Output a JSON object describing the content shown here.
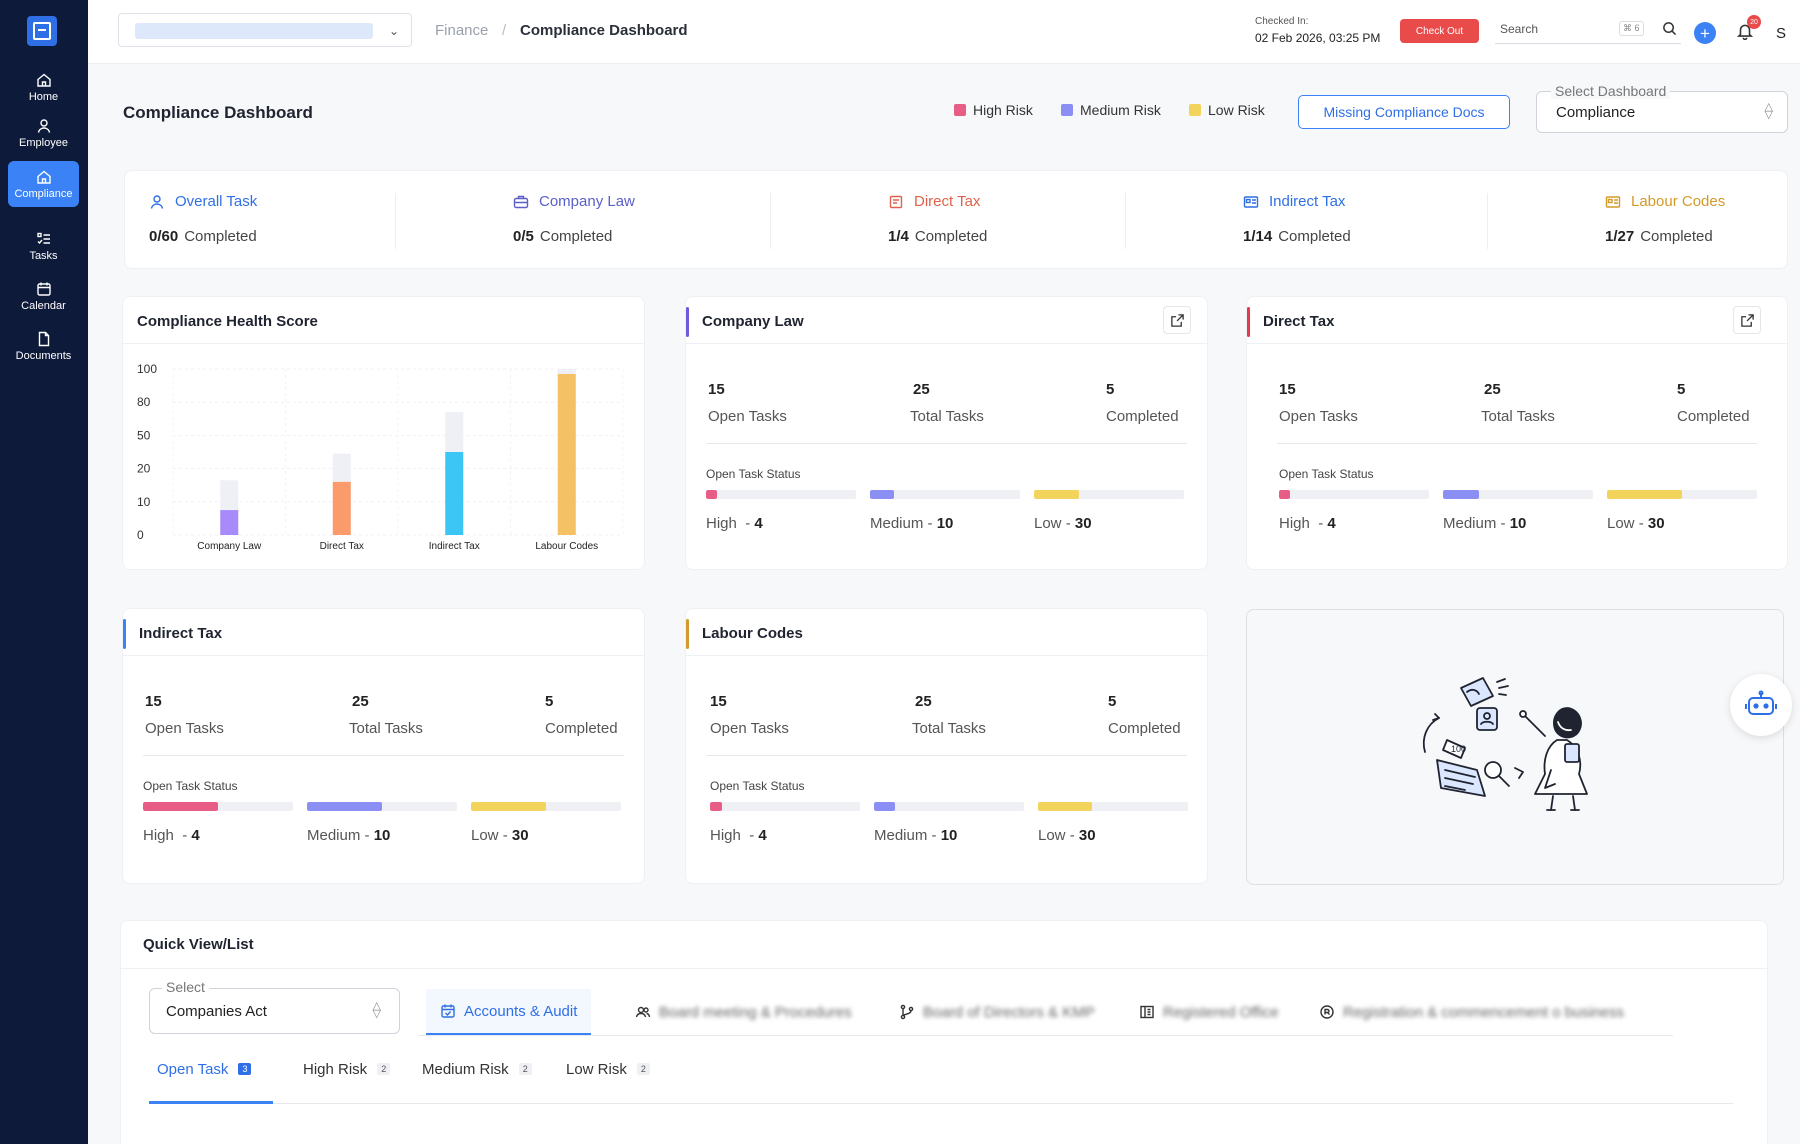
{
  "sidebar": {
    "items": [
      {
        "label": "Home",
        "icon": "home-icon"
      },
      {
        "label": "Employee",
        "icon": "user-icon"
      },
      {
        "label": "Compliance",
        "icon": "home-icon",
        "active": true
      },
      {
        "label": "Tasks",
        "icon": "tasks-icon"
      },
      {
        "label": "Calendar",
        "icon": "calendar-icon"
      },
      {
        "label": "Documents",
        "icon": "document-icon"
      }
    ]
  },
  "header": {
    "breadcrumb": [
      "Finance",
      "Compliance Dashboard"
    ],
    "checked_in_label": "Checked In:",
    "checked_in_time": "02 Feb 2026, 03:25 PM",
    "checkout_label": "Check Out",
    "search_placeholder": "Search",
    "search_shortcut": "⌘ 6",
    "notification_count": "20",
    "avatar_initial": "S"
  },
  "page": {
    "title": "Compliance Dashboard",
    "legend": [
      {
        "label": "High Risk",
        "color": "#e85d86"
      },
      {
        "label": "Medium Risk",
        "color": "#8b8ef2"
      },
      {
        "label": "Low Risk",
        "color": "#f2d45c"
      }
    ],
    "missing_docs_label": "Missing Compliance Docs",
    "dashboard_select": {
      "label": "Select Dashboard",
      "value": "Compliance"
    }
  },
  "summary": [
    {
      "label": "Overall Task",
      "count": "0/60",
      "suffix": "Completed",
      "color": "#2f6fe6"
    },
    {
      "label": "Company Law",
      "count": "0/5",
      "suffix": "Completed",
      "color": "#5b5fc7"
    },
    {
      "label": "Direct Tax",
      "count": "1/4",
      "suffix": "Completed",
      "color": "#e0624b"
    },
    {
      "label": "Indirect Tax",
      "count": "1/14",
      "suffix": "Completed",
      "color": "#2f6fe6"
    },
    {
      "label": "Labour Codes",
      "count": "1/27",
      "suffix": "Completed",
      "color": "#d49a2a"
    }
  ],
  "health": {
    "title": "Compliance Health Score"
  },
  "chart_data": {
    "type": "bar",
    "title": "Compliance Health Score",
    "y_ticks": [
      "100",
      "80",
      "50",
      "20",
      "10",
      "0"
    ],
    "categories": [
      "Company Law",
      "Direct Tax",
      "Indirect Tax",
      "Labour Codes"
    ],
    "values": [
      15,
      32,
      50,
      97
    ],
    "totals": [
      33,
      49,
      74,
      100
    ],
    "colors": [
      "#a78bfa",
      "#fb9a6a",
      "#3cc6f5",
      "#f5c165"
    ],
    "track_color": "#eef0f6"
  },
  "cards": [
    {
      "title": "Company Law",
      "accent": "#6a5cd8",
      "external": true,
      "open": "15",
      "open_label": "Open Tasks",
      "total": "25",
      "total_label": "Total Tasks",
      "done": "5",
      "done_label": "Completed",
      "status_label": "Open Task Status",
      "high_label": "High",
      "high": "4",
      "high_fill": 0.07,
      "medium_label": "Medium",
      "medium": "10",
      "medium_fill": 0.16,
      "low_label": "Low",
      "low": "30",
      "low_fill": 0.3
    },
    {
      "title": "Direct Tax",
      "accent": "#e53950",
      "external": true,
      "open": "15",
      "open_label": "Open Tasks",
      "total": "25",
      "total_label": "Total Tasks",
      "done": "5",
      "done_label": "Completed",
      "status_label": "Open Task Status",
      "high_label": "High",
      "high": "4",
      "high_fill": 0.07,
      "medium_label": "Medium",
      "medium": "10",
      "medium_fill": 0.24,
      "low_label": "Low",
      "low": "30",
      "low_fill": 0.5
    },
    {
      "title": "Indirect Tax",
      "accent": "#3b82f6",
      "external": false,
      "open": "15",
      "open_label": "Open Tasks",
      "total": "25",
      "total_label": "Total Tasks",
      "done": "5",
      "done_label": "Completed",
      "status_label": "Open Task Status",
      "high_label": "High",
      "high": "4",
      "high_fill": 0.5,
      "medium_label": "Medium",
      "medium": "10",
      "medium_fill": 0.5,
      "low_label": "Low",
      "low": "30",
      "low_fill": 0.5
    },
    {
      "title": "Labour Codes",
      "accent": "#d49a2a",
      "external": false,
      "open": "15",
      "open_label": "Open Tasks",
      "total": "25",
      "total_label": "Total Tasks",
      "done": "5",
      "done_label": "Completed",
      "status_label": "Open Task Status",
      "high_label": "High",
      "high": "4",
      "high_fill": 0.08,
      "medium_label": "Medium",
      "medium": "10",
      "medium_fill": 0.14,
      "low_label": "Low",
      "low": "30",
      "low_fill": 0.36
    }
  ],
  "quick": {
    "title": "Quick View/List",
    "select": {
      "label": "Select",
      "value": "Companies Act"
    },
    "categories": [
      {
        "label": "Accounts & Audit",
        "icon": "calendar-check-icon",
        "active": true
      },
      {
        "label": "Board meeting & Procedures",
        "icon": "users-icon"
      },
      {
        "label": "Board of Directors & KMP",
        "icon": "branch-icon"
      },
      {
        "label": "Registered Office",
        "icon": "building-icon"
      },
      {
        "label": "Registration & commencement o business",
        "icon": "registration-icon"
      }
    ],
    "subtabs": [
      {
        "label": "Open Task",
        "count": "3",
        "active": true
      },
      {
        "label": "High Risk",
        "count": "2"
      },
      {
        "label": "Medium Risk",
        "count": "2"
      },
      {
        "label": "Low Risk",
        "count": "2"
      }
    ]
  }
}
